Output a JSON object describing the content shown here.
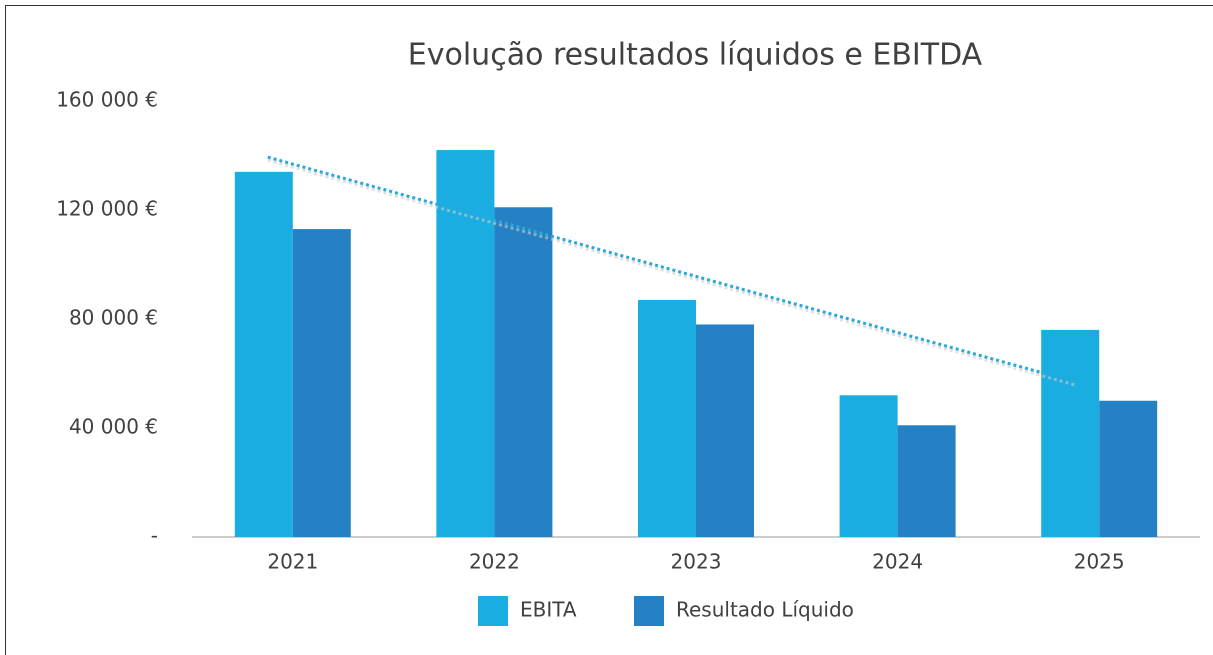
{
  "chart_data": {
    "type": "bar",
    "title": "Evolução resultados líquidos e EBITDA",
    "categories": [
      "2021",
      "2022",
      "2023",
      "2024",
      "2025"
    ],
    "series": [
      {
        "name": "EBITA",
        "color": "#19ade1",
        "values": [
          134000,
          142000,
          87000,
          52000,
          76000
        ]
      },
      {
        "name": "Resultado Líquido",
        "color": "#2581c4",
        "values": [
          113000,
          121000,
          78000,
          41000,
          50000
        ]
      }
    ],
    "ylim": [
      0,
      160000
    ],
    "yticks": [
      {
        "value": 0,
        "label": "-"
      },
      {
        "value": 40000,
        "label": "40 000 €"
      },
      {
        "value": 80000,
        "label": "80 000 €"
      },
      {
        "value": 120000,
        "label": "120 000 €"
      },
      {
        "value": 160000,
        "label": "160 000 €"
      }
    ],
    "grid": false,
    "trendline": {
      "series": 0,
      "kind": "linear",
      "color": "#29a8dc"
    },
    "legend": "bottom"
  }
}
